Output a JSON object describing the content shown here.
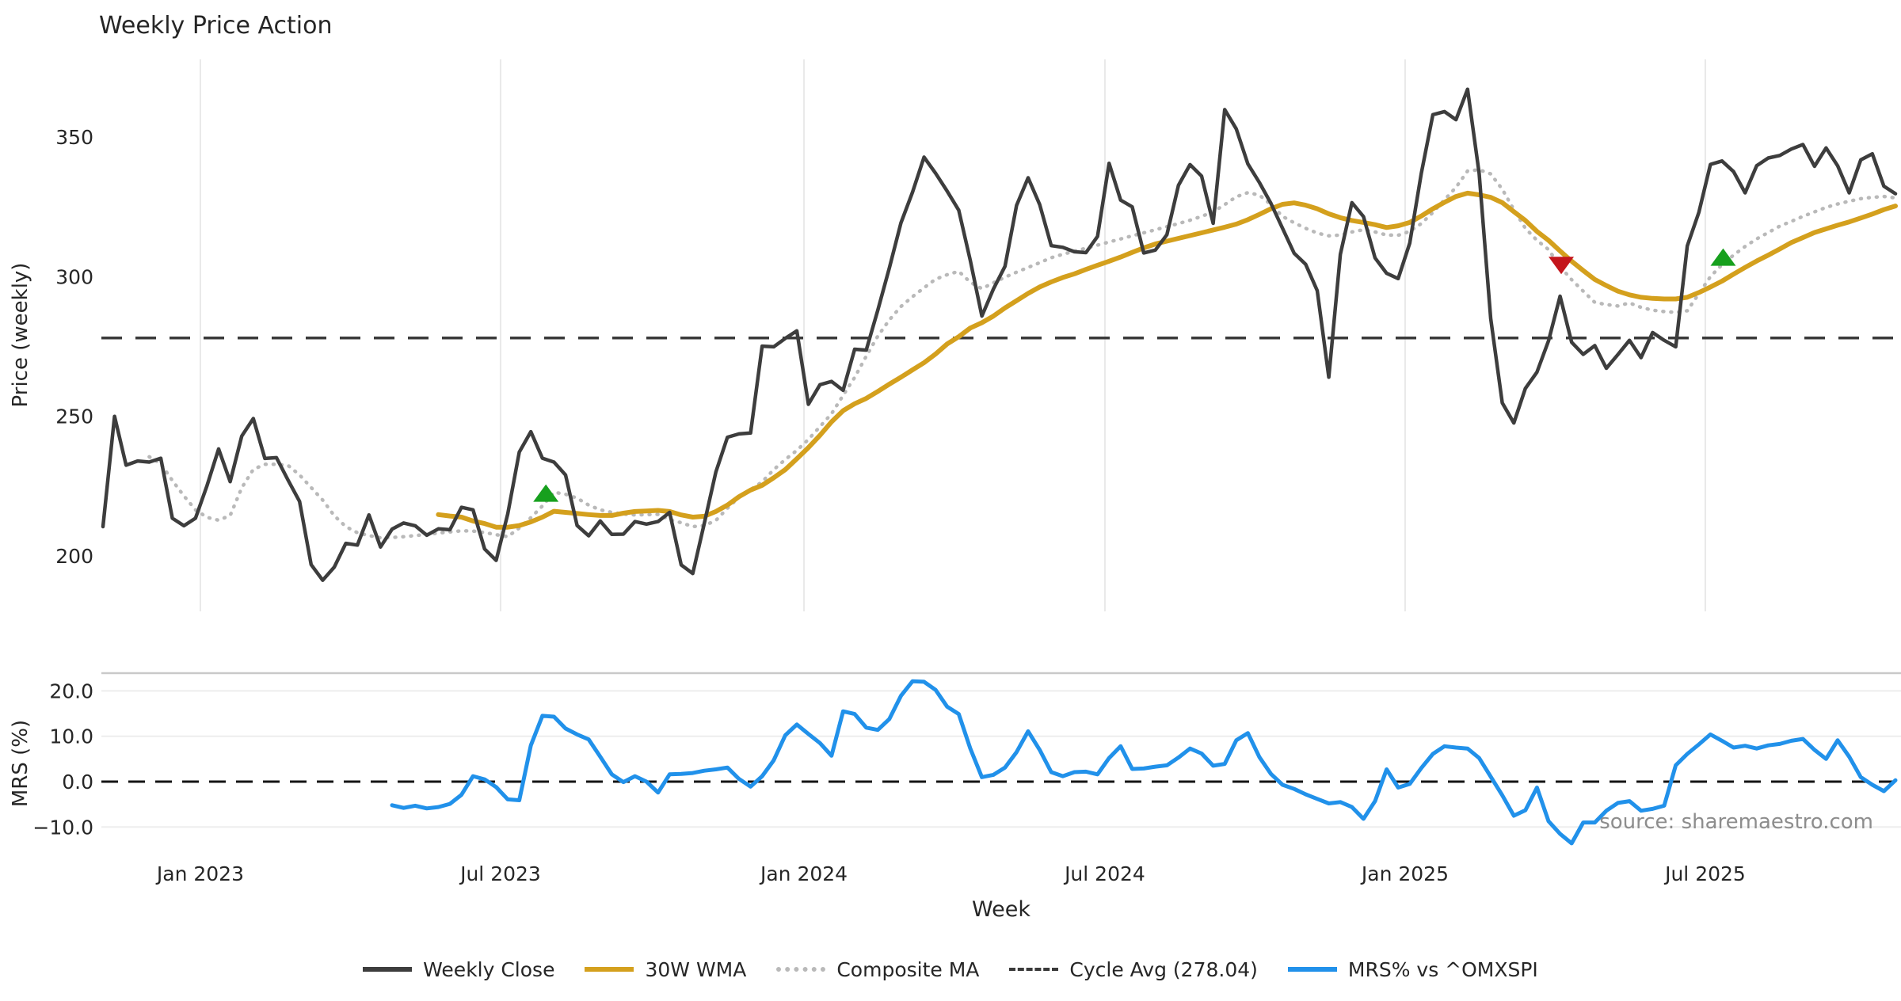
{
  "title": "Weekly Price Action",
  "source_note": "source: sharemaestro.com",
  "colors": {
    "weekly_close": "#3d3d3d",
    "wma_30w": "#d4a01d",
    "composite_ma": "#b9b9b9",
    "cycle_avg": "#3a3a3a",
    "mrs": "#2191ea",
    "buy_marker": "#17a01e",
    "sell_marker": "#c4151c",
    "grid_vertical": "#e9e9e9",
    "grid_horizontal": "#ededed",
    "bottom_spine": "#c9c9c9",
    "zero_line": "#141414",
    "text": "#262626",
    "source_text": "#8d8d8d"
  },
  "legend": {
    "items": [
      {
        "label": "Weekly Close",
        "swatch": "sw-close"
      },
      {
        "label": "30W WMA",
        "swatch": "sw-wma"
      },
      {
        "label": "Composite MA",
        "swatch": "sw-comp"
      },
      {
        "label": "Cycle Avg (278.04)",
        "swatch": "sw-cycle"
      },
      {
        "label": "MRS% vs ^OMXSPI",
        "swatch": "sw-mrs"
      }
    ]
  },
  "chart_data": [
    {
      "type": "line",
      "title": "Weekly Price Action",
      "xlabel": "",
      "ylabel": "Price (weekly)",
      "ylim": [
        180,
        378
      ],
      "grid": "vertical-only",
      "x_is_weekly": true,
      "start_date": "2022-11-07",
      "x_ticks": [
        {
          "label": "Jan 2023",
          "week": 8.42
        },
        {
          "label": "Jul 2023",
          "week": 34.38
        },
        {
          "label": "Jan 2024",
          "week": 60.62
        },
        {
          "label": "Jul 2024",
          "week": 86.64
        },
        {
          "label": "Jan 2025",
          "week": 112.6
        },
        {
          "label": "Jul 2025",
          "week": 138.56
        }
      ],
      "y_ticks": [
        {
          "label": "200",
          "value": 200
        },
        {
          "label": "250",
          "value": 250
        },
        {
          "label": "300",
          "value": 300
        },
        {
          "label": "350",
          "value": 350
        }
      ],
      "cycle_avg": 278.04,
      "series": [
        {
          "name": "Weekly Close",
          "values": [
            210.5,
            250,
            232.5,
            234,
            233.6,
            235,
            213.5,
            210.8,
            213.5,
            225.2,
            238.3,
            226.6,
            242.9,
            249.2,
            234.9,
            235.2,
            227.2,
            219.5,
            196.9,
            191.3,
            196,
            204.5,
            203.9,
            214.7,
            203.2,
            209.6,
            211.8,
            210.8,
            207.4,
            209.7,
            209.4,
            217.4,
            216.5,
            202.5,
            198.4,
            215,
            237.2,
            244.5,
            235,
            233.6,
            229,
            210.9,
            207.2,
            212.5,
            207.7,
            207.8,
            212.3,
            211.4,
            212.3,
            215.6,
            196.8,
            193.7,
            211.7,
            230.1,
            242.5,
            243.7,
            244,
            275.1,
            274.9,
            277.9,
            280.6,
            254.3,
            261.3,
            262.5,
            259.3,
            274,
            273.7,
            288,
            303.1,
            319.2,
            330.2,
            342.8,
            337,
            330.6,
            323.8,
            305.8,
            285.9,
            295.6,
            303.7,
            325.5,
            335.4,
            325.8,
            311.1,
            310.5,
            308.9,
            308.6,
            314.4,
            340.6,
            327.4,
            325,
            308.5,
            309.5,
            315,
            332.7,
            340.1,
            336,
            319.1,
            359.8,
            352.9,
            340.4,
            333.7,
            326.2,
            317.3,
            308.4,
            304.4,
            295,
            264,
            308,
            326.5,
            321.5,
            306.7,
            301.2,
            299.3,
            312,
            337,
            358,
            359.1,
            356.2,
            367.1,
            337,
            285,
            254.8,
            247.6,
            260,
            265.8,
            277,
            293,
            276.5,
            272.2,
            275.3,
            267.2,
            272.1,
            277.2,
            271,
            280,
            277.2,
            274.9,
            311,
            323,
            340.2,
            341.4,
            337.6,
            330,
            339.7,
            342.5,
            343.4,
            345.7,
            347.3,
            339.5,
            346.1,
            339.7,
            330,
            341.8,
            344,
            332.4,
            329.7
          ]
        },
        {
          "name": "30W WMA",
          "values": [
            null,
            null,
            null,
            null,
            null,
            null,
            null,
            null,
            null,
            null,
            null,
            null,
            null,
            null,
            null,
            null,
            null,
            null,
            null,
            null,
            null,
            null,
            null,
            null,
            null,
            null,
            null,
            null,
            null,
            214.8,
            214.3,
            213.9,
            212.5,
            211.6,
            210.3,
            210.3,
            210.9,
            212.2,
            213.9,
            216,
            215.6,
            215.2,
            214.8,
            214.5,
            214.5,
            215.3,
            215.9,
            216.1,
            216.3,
            215.9,
            214.7,
            213.9,
            214.2,
            215.9,
            218.2,
            221.2,
            223.6,
            225.3,
            228,
            230.9,
            234.8,
            238.8,
            243.2,
            248,
            252,
            254.5,
            256.4,
            258.9,
            261.5,
            264,
            266.6,
            269.2,
            272.3,
            275.9,
            278.5,
            281.6,
            283.5,
            285.9,
            288.8,
            291.4,
            294,
            296.3,
            298.1,
            299.7,
            301,
            302.6,
            304.1,
            305.5,
            307,
            308.7,
            310.3,
            311.7,
            312.7,
            313.7,
            314.7,
            315.7,
            316.7,
            317.7,
            318.8,
            320.4,
            322.3,
            324.3,
            325.9,
            326.4,
            325.6,
            324.3,
            322.5,
            321.1,
            320.1,
            319.4,
            318.6,
            317.6,
            318.2,
            319.4,
            321.7,
            324.3,
            326.6,
            328.7,
            329.9,
            329.3,
            328.4,
            326.5,
            323.3,
            320.1,
            316.2,
            313,
            309.2,
            305.5,
            302.2,
            299,
            296.8,
            294.8,
            293.5,
            292.6,
            292.2,
            292,
            292,
            292.6,
            294.3,
            296.3,
            298.4,
            300.9,
            303.3,
            305.6,
            307.7,
            309.9,
            312.2,
            314,
            315.8,
            317.1,
            318.4,
            319.6,
            321,
            322.4,
            324,
            325.3
          ]
        },
        {
          "name": "Composite MA",
          "values": [
            null,
            null,
            null,
            null,
            235.5,
            233,
            227,
            221.5,
            216.5,
            213.8,
            212.8,
            214.5,
            224.4,
            231,
            232.8,
            232.8,
            232.4,
            229,
            224.5,
            220,
            214.4,
            210.5,
            208.3,
            207.3,
            206.5,
            206.6,
            206.9,
            207.3,
            207.7,
            208.2,
            208.6,
            209,
            208.9,
            208.4,
            207.6,
            206.9,
            210,
            213.7,
            217.9,
            222.8,
            222.1,
            220.7,
            218.2,
            216.5,
            215.6,
            215,
            214.7,
            214.8,
            214.9,
            213,
            211.9,
            210.5,
            210.9,
            212.7,
            217.1,
            221,
            223.7,
            226.5,
            230.9,
            234.5,
            237.8,
            241.7,
            246.3,
            250.9,
            257.5,
            263.9,
            271.5,
            278.7,
            284.5,
            289.3,
            292.8,
            296,
            299.1,
            300.7,
            301.9,
            298,
            295.7,
            297.8,
            299.8,
            301.6,
            303.3,
            305,
            306.8,
            308,
            309.1,
            310.2,
            311.3,
            312.4,
            313.5,
            314.6,
            315.7,
            316.8,
            317.9,
            319,
            320.2,
            321.6,
            323.2,
            325.8,
            328.6,
            330.1,
            329.2,
            325.8,
            321.6,
            319.3,
            317.3,
            315.6,
            314.6,
            314.9,
            316,
            316.8,
            316,
            314.9,
            314.8,
            316.2,
            319,
            323,
            327.5,
            332,
            337.8,
            338.3,
            336.8,
            331.3,
            324,
            317.3,
            313,
            309.7,
            303.6,
            298.9,
            294.8,
            290.8,
            290,
            289.5,
            290.6,
            289,
            288,
            287.5,
            287.2,
            287.8,
            293.9,
            300,
            304.3,
            307.7,
            310.8,
            313.5,
            315.8,
            318.1,
            319.8,
            321.6,
            323.2,
            324.8,
            326,
            327,
            327.9,
            328.4,
            328.7,
            328.2
          ]
        }
      ],
      "markers": {
        "buy": [
          {
            "week": 38.3,
            "price": 222.5
          },
          {
            "week": 140.1,
            "price": 307
          }
        ],
        "sell": [
          {
            "week": 126.1,
            "price": 304
          }
        ]
      }
    },
    {
      "type": "line",
      "xlabel": "Week",
      "ylabel": "MRS (%)",
      "ylim": [
        -16,
        24
      ],
      "zero_line": 0,
      "grid": "horizontal-only",
      "y_ticks": [
        {
          "label": "20.0",
          "value": 20
        },
        {
          "label": "10.0",
          "value": 10
        },
        {
          "label": "0.0",
          "value": 0
        },
        {
          "label": "−10.0",
          "value": -10
        }
      ],
      "series": [
        {
          "name": "MRS% vs ^OMXSPI",
          "values": [
            null,
            null,
            null,
            null,
            null,
            null,
            null,
            null,
            null,
            null,
            null,
            null,
            null,
            null,
            null,
            null,
            null,
            null,
            null,
            null,
            null,
            null,
            null,
            null,
            null,
            -5.2,
            -5.8,
            -5.3,
            -5.9,
            -5.6,
            -4.9,
            -2.9,
            1.2,
            0.5,
            -1.2,
            -3.9,
            -4.1,
            8,
            14.5,
            14.3,
            11.7,
            10.4,
            9.3,
            5.5,
            1.6,
            -0.1,
            1.2,
            0,
            -2.4,
            1.6,
            1.7,
            1.9,
            2.4,
            2.7,
            3.1,
            0.6,
            -1.1,
            1.2,
            4.7,
            10.2,
            12.6,
            10.5,
            8.5,
            5.7,
            15.5,
            14.9,
            11.9,
            11.4,
            13.8,
            18.9,
            22.1,
            22,
            20.2,
            16.5,
            14.9,
            7.3,
            1,
            1.5,
            3.1,
            6.5,
            11.1,
            7,
            2.1,
            1.2,
            2.1,
            2.2,
            1.6,
            5.2,
            7.8,
            2.8,
            2.9,
            3.3,
            3.6,
            5.3,
            7.3,
            6.2,
            3.5,
            3.9,
            9.1,
            10.7,
            5.4,
            1.7,
            -0.7,
            -1.6,
            -2.8,
            -3.8,
            -4.8,
            -4.5,
            -5.6,
            -8.2,
            -4.3,
            2.7,
            -1.3,
            -0.5,
            3,
            6.1,
            7.8,
            7.5,
            7.3,
            5.2,
            1.1,
            -3,
            -7.5,
            -6.3,
            -1.3,
            -8.7,
            -11.5,
            -13.6,
            -9,
            -9,
            -6.4,
            -4.7,
            -4.3,
            -6.4,
            -6,
            -5.3,
            3.6,
            6.1,
            8.2,
            10.4,
            9,
            7.5,
            7.9,
            7.3,
            8,
            8.3,
            9,
            9.4,
            7,
            5,
            9.1,
            5.5,
            1,
            -0.7,
            -2.1,
            0.3
          ]
        }
      ]
    }
  ]
}
